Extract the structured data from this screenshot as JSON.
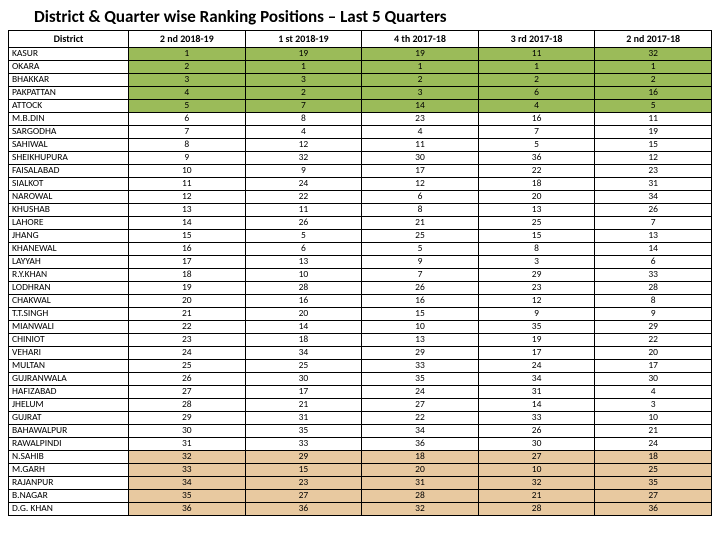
{
  "title": "District & Quarter wise Ranking Positions – Last 5 Quarters",
  "columns": [
    "District",
    "2 nd 2018-19",
    "1 st 2018-19",
    "4 th 2017-18",
    "3 rd 2017-18",
    "2 nd 2017-18"
  ],
  "band_colors": {
    "green": "#9bbb59",
    "white": "#ffffff",
    "tan": "#e8c9a0"
  },
  "rows": [
    {
      "band": "green",
      "cells": [
        "KASUR",
        "1",
        "19",
        "19",
        "11",
        "32"
      ]
    },
    {
      "band": "green",
      "cells": [
        "OKARA",
        "2",
        "1",
        "1",
        "1",
        "1"
      ]
    },
    {
      "band": "green",
      "cells": [
        "BHAKKAR",
        "3",
        "3",
        "2",
        "2",
        "2"
      ]
    },
    {
      "band": "green",
      "cells": [
        "PAKPATTAN",
        "4",
        "2",
        "3",
        "6",
        "16"
      ]
    },
    {
      "band": "green",
      "cells": [
        "ATTOCK",
        "5",
        "7",
        "14",
        "4",
        "5"
      ]
    },
    {
      "band": "white",
      "cells": [
        "M.B.DIN",
        "6",
        "8",
        "23",
        "16",
        "11"
      ]
    },
    {
      "band": "white",
      "cells": [
        "SARGODHA",
        "7",
        "4",
        "4",
        "7",
        "19"
      ]
    },
    {
      "band": "white",
      "cells": [
        "SAHIWAL",
        "8",
        "12",
        "11",
        "5",
        "15"
      ]
    },
    {
      "band": "white",
      "cells": [
        "SHEIKHUPURA",
        "9",
        "32",
        "30",
        "36",
        "12"
      ]
    },
    {
      "band": "white",
      "cells": [
        "FAISALABAD",
        "10",
        "9",
        "17",
        "22",
        "23"
      ]
    },
    {
      "band": "white",
      "cells": [
        "SIALKOT",
        "11",
        "24",
        "12",
        "18",
        "31"
      ]
    },
    {
      "band": "white",
      "cells": [
        "NAROWAL",
        "12",
        "22",
        "6",
        "20",
        "34"
      ]
    },
    {
      "band": "white",
      "cells": [
        "KHUSHAB",
        "13",
        "11",
        "8",
        "13",
        "26"
      ]
    },
    {
      "band": "white",
      "cells": [
        "LAHORE",
        "14",
        "26",
        "21",
        "25",
        "7"
      ]
    },
    {
      "band": "white",
      "cells": [
        "JHANG",
        "15",
        "5",
        "25",
        "15",
        "13"
      ]
    },
    {
      "band": "white",
      "cells": [
        "KHANEWAL",
        "16",
        "6",
        "5",
        "8",
        "14"
      ]
    },
    {
      "band": "white",
      "cells": [
        "LAYYAH",
        "17",
        "13",
        "9",
        "3",
        "6"
      ]
    },
    {
      "band": "white",
      "cells": [
        "R.Y.KHAN",
        "18",
        "10",
        "7",
        "29",
        "33"
      ]
    },
    {
      "band": "white",
      "cells": [
        "LODHRAN",
        "19",
        "28",
        "26",
        "23",
        "28"
      ]
    },
    {
      "band": "white",
      "cells": [
        "CHAKWAL",
        "20",
        "16",
        "16",
        "12",
        "8"
      ]
    },
    {
      "band": "white",
      "cells": [
        "T.T.SINGH",
        "21",
        "20",
        "15",
        "9",
        "9"
      ]
    },
    {
      "band": "white",
      "cells": [
        "MIANWALI",
        "22",
        "14",
        "10",
        "35",
        "29"
      ]
    },
    {
      "band": "white",
      "cells": [
        "CHINIOT",
        "23",
        "18",
        "13",
        "19",
        "22"
      ]
    },
    {
      "band": "white",
      "cells": [
        "VEHARI",
        "24",
        "34",
        "29",
        "17",
        "20"
      ]
    },
    {
      "band": "white",
      "cells": [
        "MULTAN",
        "25",
        "25",
        "33",
        "24",
        "17"
      ]
    },
    {
      "band": "white",
      "cells": [
        "GUJRANWALA",
        "26",
        "30",
        "35",
        "34",
        "30"
      ]
    },
    {
      "band": "white",
      "cells": [
        "HAFIZABAD",
        "27",
        "17",
        "24",
        "31",
        "4"
      ]
    },
    {
      "band": "white",
      "cells": [
        "JHELUM",
        "28",
        "21",
        "27",
        "14",
        "3"
      ]
    },
    {
      "band": "white",
      "cells": [
        "GUJRAT",
        "29",
        "31",
        "22",
        "33",
        "10"
      ]
    },
    {
      "band": "white",
      "cells": [
        "BAHAWALPUR",
        "30",
        "35",
        "34",
        "26",
        "21"
      ]
    },
    {
      "band": "white",
      "cells": [
        "RAWALPINDI",
        "31",
        "33",
        "36",
        "30",
        "24"
      ]
    },
    {
      "band": "tan",
      "cells": [
        "N.SAHIB",
        "32",
        "29",
        "18",
        "27",
        "18"
      ]
    },
    {
      "band": "tan",
      "cells": [
        "M.GARH",
        "33",
        "15",
        "20",
        "10",
        "25"
      ]
    },
    {
      "band": "tan",
      "cells": [
        "RAJANPUR",
        "34",
        "23",
        "31",
        "32",
        "35"
      ]
    },
    {
      "band": "tan",
      "cells": [
        "B.NAGAR",
        "35",
        "27",
        "28",
        "21",
        "27"
      ]
    },
    {
      "band": "tan",
      "cells": [
        "D.G. KHAN",
        "36",
        "36",
        "32",
        "28",
        "36"
      ]
    }
  ]
}
